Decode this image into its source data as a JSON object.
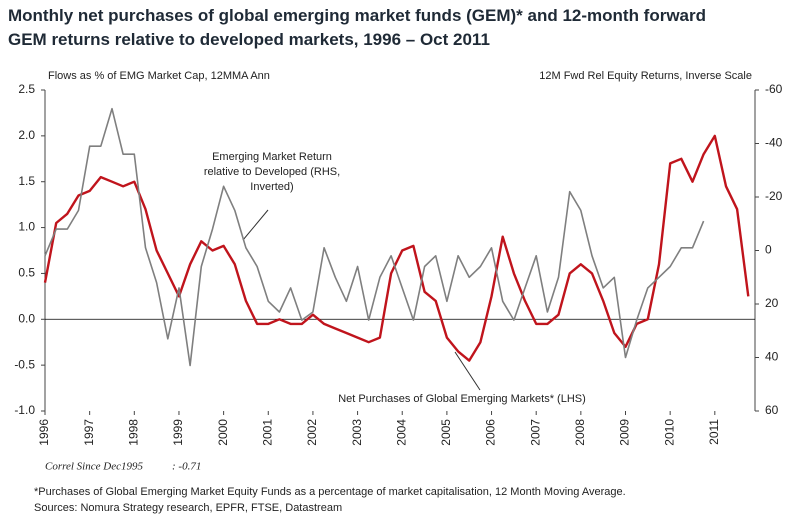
{
  "chart_data": {
    "type": "line",
    "title": "Monthly net purchases of global emerging market funds (GEM)* and 12-month forward GEM returns relative to developed markets, 1996 – Oct 2011",
    "ylabel": "Flows as % of EMG Market Cap, 12MMA Ann",
    "y2label": "12M Fwd Rel Equity Returns, Inverse Scale",
    "annotations": [
      {
        "text": [
          "Emerging Market Return",
          "relative to Developed (RHS,",
          "Inverted)"
        ]
      },
      {
        "text": [
          "Net Purchases of Global Emerging Markets* (LHS)"
        ]
      }
    ],
    "correlation": {
      "label": "Correl Since Dec1995",
      "value_label": ": -0.71"
    },
    "footnote": "*Purchases of Global Emerging Market Equity Funds as a percentage of market capitalisation, 12 Month Moving Average.",
    "source": "Sources: Nomura Strategy research,  EPFR, FTSE, Datastream",
    "x": [
      1996,
      1996.25,
      1996.5,
      1996.75,
      1997,
      1997.25,
      1997.5,
      1997.75,
      1998,
      1998.25,
      1998.5,
      1998.75,
      1999,
      1999.25,
      1999.5,
      1999.75,
      2000,
      2000.25,
      2000.5,
      2000.75,
      2001,
      2001.25,
      2001.5,
      2001.75,
      2002,
      2002.25,
      2002.5,
      2002.75,
      2003,
      2003.25,
      2003.5,
      2003.75,
      2004,
      2004.25,
      2004.5,
      2004.75,
      2005,
      2005.25,
      2005.5,
      2005.75,
      2006,
      2006.25,
      2006.5,
      2006.75,
      2007,
      2007.25,
      2007.5,
      2007.75,
      2008,
      2008.25,
      2008.5,
      2008.75,
      2009,
      2009.25,
      2009.5,
      2009.75,
      2010,
      2010.25,
      2010.5,
      2010.75,
      2011,
      2011.25,
      2011.5,
      2011.75
    ],
    "series": [
      {
        "name": "Net Purchases of Global Emerging Markets* (LHS)",
        "color": "#c0141c",
        "axis": "y",
        "values": [
          0.4,
          1.05,
          1.15,
          1.35,
          1.4,
          1.55,
          1.5,
          1.45,
          1.5,
          1.2,
          0.75,
          0.5,
          0.25,
          0.6,
          0.85,
          0.75,
          0.8,
          0.6,
          0.2,
          -0.05,
          -0.05,
          0,
          -0.05,
          -0.05,
          0.05,
          -0.05,
          -0.1,
          -0.15,
          -0.2,
          -0.25,
          -0.2,
          0.5,
          0.75,
          0.8,
          0.3,
          0.2,
          -0.2,
          -0.35,
          -0.45,
          -0.25,
          0.25,
          0.9,
          0.5,
          0.2,
          -0.05,
          -0.05,
          0.05,
          0.5,
          0.6,
          0.5,
          0.2,
          -0.15,
          -0.3,
          -0.05,
          0,
          0.6,
          1.7,
          1.75,
          1.5,
          1.8,
          2.0,
          1.45,
          1.2,
          0.25
        ]
      },
      {
        "name": "Emerging Market Return relative to Developed (RHS, Inverted)",
        "color": "#7f7f7f",
        "axis": "y2",
        "values": [
          2,
          -8,
          -8,
          -15,
          -39,
          -39,
          -53,
          -36,
          -36,
          -1,
          12,
          33,
          14,
          43,
          6,
          -8,
          -24,
          -15,
          -1,
          6,
          19,
          23,
          14,
          26,
          23,
          -1,
          10,
          19,
          6,
          26,
          10,
          2,
          14,
          26,
          6,
          2,
          19,
          2,
          10,
          6,
          -1,
          19,
          26,
          14,
          2,
          23,
          10,
          -22,
          -15,
          2,
          14,
          10,
          40,
          26,
          14,
          10,
          6,
          -1,
          -1,
          -11,
          null,
          null,
          null,
          null
        ]
      }
    ],
    "xlim": [
      1996,
      2011.9
    ],
    "xticks": [
      1996,
      1997,
      1998,
      1999,
      2000,
      2001,
      2002,
      2003,
      2004,
      2005,
      2006,
      2007,
      2008,
      2009,
      2010,
      2011
    ],
    "ylim": [
      -1.0,
      2.5
    ],
    "yticks": [
      {
        "value": -1.0,
        "label": "-1.0"
      },
      -0.5,
      {
        "value": 0,
        "label": "0.0"
      },
      0.5,
      {
        "value": 1.0,
        "label": "1.0"
      },
      1.5,
      {
        "value": 2.0,
        "label": "2.0"
      },
      2.5
    ],
    "y2lim": [
      60,
      -60
    ],
    "y2ticks": [
      60,
      40,
      20,
      0,
      -20,
      -40,
      -60
    ]
  }
}
